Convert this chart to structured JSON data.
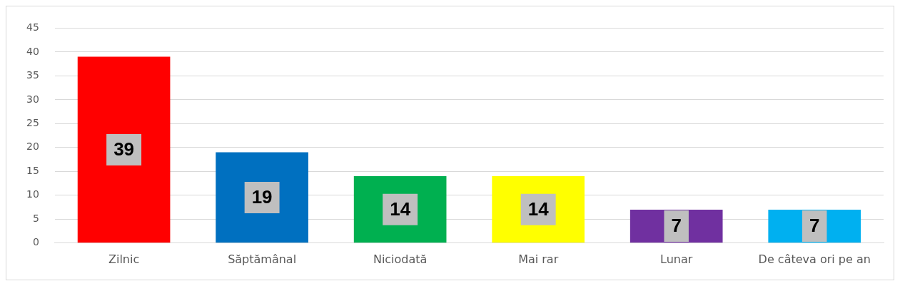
{
  "chart_data": {
    "type": "bar",
    "categories": [
      "Zilnic",
      "Săptămânal",
      "Niciodată",
      "Mai rar",
      "Lunar",
      "De câteva ori pe an"
    ],
    "values": [
      39,
      19,
      14,
      14,
      7,
      7
    ],
    "colors": [
      "#ff0000",
      "#0070c0",
      "#00b050",
      "#ffff00",
      "#7030a0",
      "#00b0f0"
    ],
    "ylim": [
      0,
      45
    ],
    "yticks": [
      0,
      5,
      10,
      15,
      20,
      25,
      30,
      35,
      40,
      45
    ],
    "grid": "y",
    "data_labels": true,
    "legend": false
  }
}
